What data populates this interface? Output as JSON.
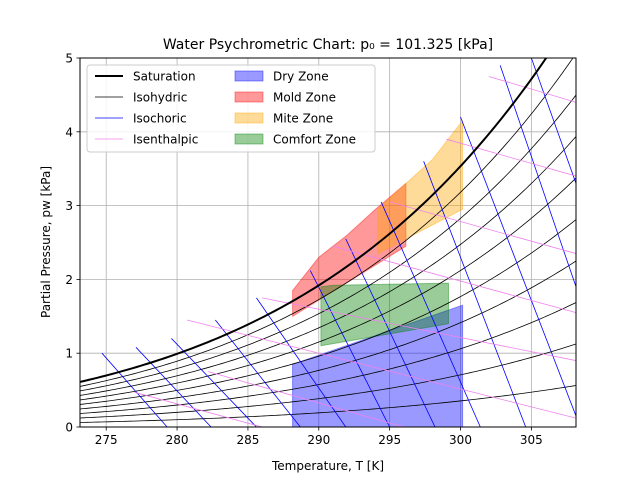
{
  "chart_data": {
    "type": "line",
    "title": "Water Psychrometric Chart: p₀ = 101.325 [kPa]",
    "xlabel": "Temperature, T [K]",
    "ylabel": "Partial Pressure, pw [kPa]",
    "xlim": [
      273.15,
      308.15
    ],
    "ylim": [
      0,
      5
    ],
    "x_ticks": [
      275,
      280,
      285,
      290,
      295,
      300,
      305
    ],
    "y_ticks": [
      0,
      1,
      2,
      3,
      4,
      5
    ],
    "grid": true,
    "legend_position": "top-left",
    "legend": [
      {
        "label": "Saturation",
        "kind": "line",
        "color": "#000000",
        "width": 2
      },
      {
        "label": "Isohydric",
        "kind": "line",
        "color": "#000000",
        "width": 0.8
      },
      {
        "label": "Isochoric",
        "kind": "line",
        "color": "#0000ff",
        "width": 0.8
      },
      {
        "label": "Isenthalpic",
        "kind": "line",
        "color": "#ee82ee",
        "width": 0.8
      },
      {
        "label": "Dry Zone",
        "kind": "patch",
        "color": "#0000ff",
        "alpha": 0.4
      },
      {
        "label": "Mold Zone",
        "kind": "patch",
        "color": "#ff0000",
        "alpha": 0.4
      },
      {
        "label": "Mite Zone",
        "kind": "patch",
        "color": "#ffa500",
        "alpha": 0.4
      },
      {
        "label": "Comfort Zone",
        "kind": "patch",
        "color": "#008000",
        "alpha": 0.4
      }
    ],
    "isohydric_relative_humidity": [
      0.1,
      0.2,
      0.3,
      0.4,
      0.5,
      0.6,
      0.7,
      0.8,
      0.9
    ],
    "isochoric_lines": [
      {
        "start": [
          274.7,
          1.0
        ],
        "end": [
          279.3,
          0.0
        ]
      },
      {
        "start": [
          277.1,
          1.08
        ],
        "end": [
          282.4,
          0.0
        ]
      },
      {
        "start": [
          279.6,
          1.2
        ],
        "end": [
          285.6,
          0.0
        ]
      },
      {
        "start": [
          282.7,
          1.45
        ],
        "end": [
          288.7,
          0.0
        ]
      },
      {
        "start": [
          285.6,
          1.75
        ],
        "end": [
          291.9,
          0.0
        ]
      },
      {
        "start": [
          289.4,
          2.12
        ],
        "end": [
          295.0,
          0.0
        ]
      },
      {
        "start": [
          291.9,
          2.55
        ],
        "end": [
          298.2,
          0.0
        ]
      },
      {
        "start": [
          294.4,
          3.05
        ],
        "end": [
          301.4,
          0.0
        ]
      },
      {
        "start": [
          297.4,
          3.6
        ],
        "end": [
          304.6,
          0.0
        ]
      },
      {
        "start": [
          300.0,
          4.2
        ],
        "end": [
          308.15,
          0.15
        ]
      },
      {
        "start": [
          302.8,
          4.9
        ],
        "end": [
          308.15,
          1.9
        ]
      },
      {
        "start": [
          305.0,
          5.0
        ],
        "end": [
          308.15,
          3.3
        ]
      }
    ],
    "isenthalpic_lines": [
      {
        "start": [
          273.15,
          0.0
        ],
        "end": [
          277.0,
          0.0
        ]
      },
      {
        "start": [
          277.0,
          0.47
        ],
        "end": [
          286.0,
          0.0
        ]
      },
      {
        "start": [
          282.2,
          0.75
        ],
        "end": [
          296.0,
          0.0
        ]
      },
      {
        "start": [
          280.7,
          1.45
        ],
        "end": [
          308.15,
          0.12
        ]
      },
      {
        "start": [
          286.0,
          1.75
        ],
        "end": [
          308.15,
          0.9
        ]
      },
      {
        "start": [
          291.0,
          2.45
        ],
        "end": [
          308.15,
          1.55
        ]
      },
      {
        "start": [
          295.0,
          3.05
        ],
        "end": [
          308.15,
          2.35
        ]
      },
      {
        "start": [
          299.0,
          3.9
        ],
        "end": [
          308.15,
          3.4
        ]
      },
      {
        "start": [
          302.0,
          4.75
        ],
        "end": [
          308.15,
          4.4
        ]
      }
    ],
    "zones": [
      {
        "name": "Dry Zone",
        "color": "#0000ff",
        "alpha": 0.4,
        "polygon": [
          [
            288.15,
            0.0
          ],
          [
            300.15,
            0.0
          ],
          [
            300.15,
            1.65
          ],
          [
            288.15,
            0.85
          ]
        ]
      },
      {
        "name": "Mold Zone",
        "color": "#ff0000",
        "alpha": 0.4,
        "polygon": [
          [
            288.15,
            1.5
          ],
          [
            288.15,
            1.85
          ],
          [
            290.0,
            2.3
          ],
          [
            292.0,
            2.6
          ],
          [
            294.0,
            2.95
          ],
          [
            296.15,
            3.3
          ],
          [
            296.15,
            2.45
          ]
        ]
      },
      {
        "name": "Mite Zone",
        "color": "#ffa500",
        "alpha": 0.4,
        "polygon": [
          [
            294.15,
            2.35
          ],
          [
            294.15,
            2.95
          ],
          [
            296.15,
            3.3
          ],
          [
            298.0,
            3.62
          ],
          [
            300.15,
            4.15
          ],
          [
            300.15,
            2.95
          ]
        ]
      },
      {
        "name": "Comfort Zone",
        "color": "#008000",
        "alpha": 0.4,
        "polygon": [
          [
            290.15,
            1.1
          ],
          [
            290.15,
            1.9
          ],
          [
            291.0,
            1.92
          ],
          [
            299.15,
            1.95
          ],
          [
            299.15,
            1.4
          ]
        ]
      }
    ]
  }
}
